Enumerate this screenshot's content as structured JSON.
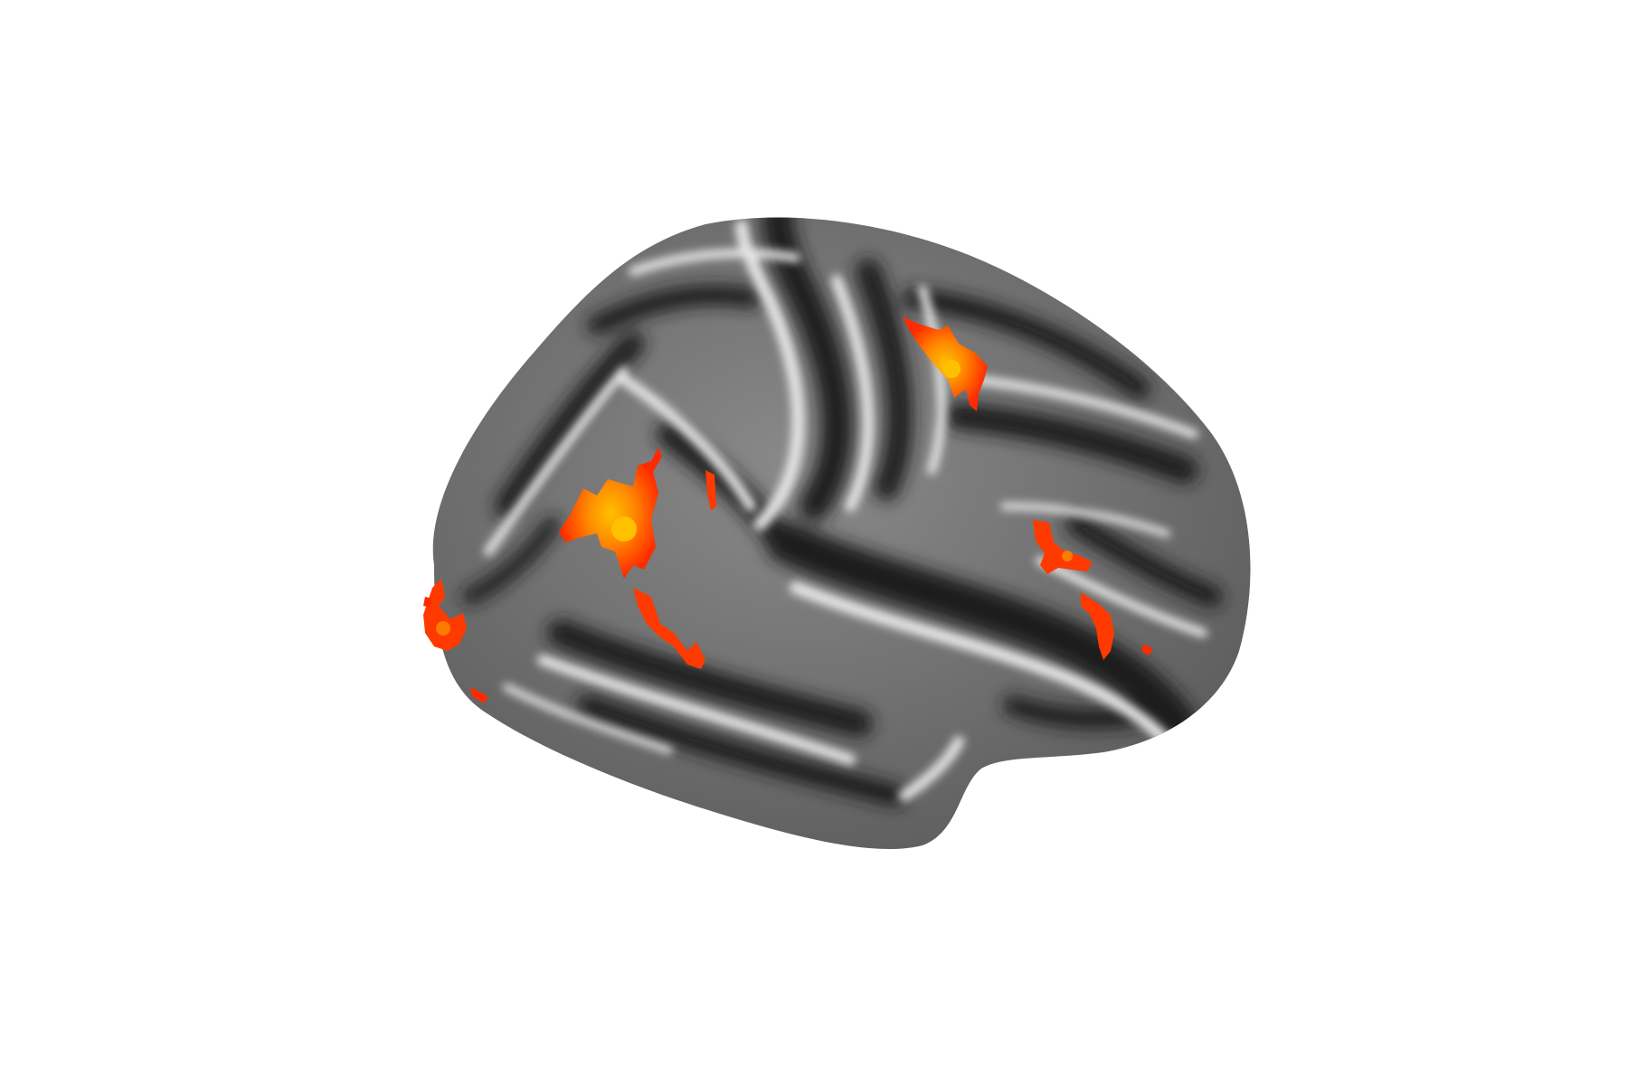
{
  "scene": {
    "background_color": "#ffffff",
    "surface_base_color": "#7a7a7a",
    "sulcus_color": "#1c1c1c",
    "gyrus_color": "#e6e6e6",
    "activation_low_color": "#ff2a00",
    "activation_mid_color": "#ff7a00",
    "activation_high_color": "#ffc000"
  }
}
